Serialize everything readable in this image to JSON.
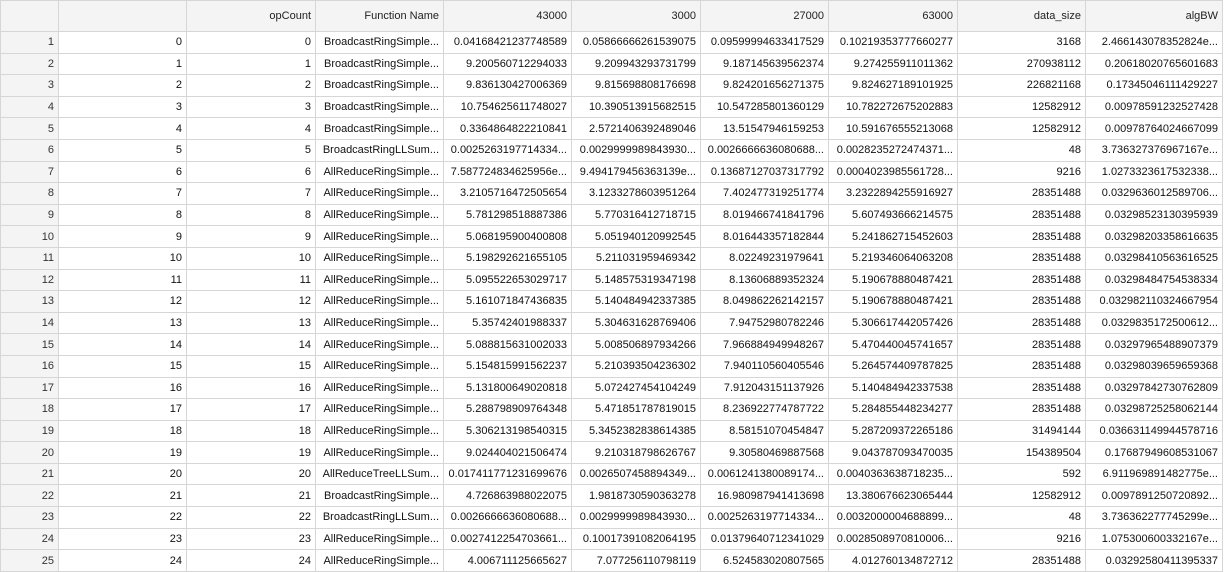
{
  "headers": [
    "",
    "",
    "opCount",
    "Function Name",
    "43000",
    "3000",
    "27000",
    "63000",
    "data_size",
    "algBW"
  ],
  "rows": [
    [
      "1",
      "0",
      "0",
      "BroadcastRingSimple...",
      "0.04168421237748589",
      "0.05866666261539075",
      "0.09599994633417529",
      "0.10219353777660277",
      "3168",
      "2.466143078352824e..."
    ],
    [
      "2",
      "1",
      "1",
      "BroadcastRingSimple...",
      "9.200560712294033",
      "9.209943293731799",
      "9.187145639562374",
      "9.274255911011362",
      "270938112",
      "0.20618020765601683"
    ],
    [
      "3",
      "2",
      "2",
      "BroadcastRingSimple...",
      "9.836130427006369",
      "9.815698808176698",
      "9.824201656271375",
      "9.824627189101925",
      "226821168",
      "0.17345046111429227"
    ],
    [
      "4",
      "3",
      "3",
      "BroadcastRingSimple...",
      "10.754625611748027",
      "10.390513915682515",
      "10.547285801360129",
      "10.782272675202883",
      "12582912",
      "0.00978591232527428"
    ],
    [
      "5",
      "4",
      "4",
      "BroadcastRingSimple...",
      "0.3364864822210841",
      "2.5721406392489046",
      "13.51547946159253",
      "10.591676555213068",
      "12582912",
      "0.00978764024667099"
    ],
    [
      "6",
      "5",
      "5",
      "BroadcastRingLLSum...",
      "0.0025263197714334...",
      "0.0029999989843930...",
      "0.0026666636080688...",
      "0.0028235272474371...",
      "48",
      "3.736327376967167e..."
    ],
    [
      "7",
      "6",
      "6",
      "AllReduceRingSimple...",
      "7.587724834625956e...",
      "9.494179456363139e...",
      "0.13687127037317792",
      "0.0004023985561728...",
      "9216",
      "1.0273323617532338..."
    ],
    [
      "8",
      "7",
      "7",
      "AllReduceRingSimple...",
      "3.2105716472505654",
      "3.1233278603951264",
      "7.402477319251774",
      "3.2322894255916927",
      "28351488",
      "0.0329636012589706..."
    ],
    [
      "9",
      "8",
      "8",
      "AllReduceRingSimple...",
      "5.781298518887386",
      "5.770316412718715",
      "8.019466741841796",
      "5.607493666214575",
      "28351488",
      "0.03298523130395939"
    ],
    [
      "10",
      "9",
      "9",
      "AllReduceRingSimple...",
      "5.068195900400808",
      "5.051940120992545",
      "8.016443357182844",
      "5.241862715452603",
      "28351488",
      "0.03298203358616635"
    ],
    [
      "11",
      "10",
      "10",
      "AllReduceRingSimple...",
      "5.198292621655105",
      "5.211031959469342",
      "8.02249231979641",
      "5.219346064063208",
      "28351488",
      "0.03298410563616525"
    ],
    [
      "12",
      "11",
      "11",
      "AllReduceRingSimple...",
      "5.095522653029717",
      "5.148575319347198",
      "8.13606889352324",
      "5.190678880487421",
      "28351488",
      "0.03298484754538334"
    ],
    [
      "13",
      "12",
      "12",
      "AllReduceRingSimple...",
      "5.161071847436835",
      "5.140484942337385",
      "8.049862262142157",
      "5.190678880487421",
      "28351488",
      "0.032982110324667954"
    ],
    [
      "14",
      "13",
      "13",
      "AllReduceRingSimple...",
      "5.35742401988337",
      "5.304631628769406",
      "7.94752980782246",
      "5.306617442057426",
      "28351488",
      "0.0329835172500612..."
    ],
    [
      "15",
      "14",
      "14",
      "AllReduceRingSimple...",
      "5.088815631002033",
      "5.008506897934266",
      "7.966884949948267",
      "5.470440045741657",
      "28351488",
      "0.03297965488907379"
    ],
    [
      "16",
      "15",
      "15",
      "AllReduceRingSimple...",
      "5.154815991562237",
      "5.210393504236302",
      "7.940110560405546",
      "5.264574409787825",
      "28351488",
      "0.03298039659659368"
    ],
    [
      "17",
      "16",
      "16",
      "AllReduceRingSimple...",
      "5.131800649020818",
      "5.072427454104249",
      "7.912043151137926",
      "5.140484942337538",
      "28351488",
      "0.03297842730762809"
    ],
    [
      "18",
      "17",
      "17",
      "AllReduceRingSimple...",
      "5.288798909764348",
      "5.471851787819015",
      "8.236922774787722",
      "5.284855448234277",
      "28351488",
      "0.03298725258062144"
    ],
    [
      "19",
      "18",
      "18",
      "AllReduceRingSimple...",
      "5.306213198540315",
      "5.3452382838614385",
      "8.58151070454847",
      "5.287209372265186",
      "31494144",
      "0.036631149944578716"
    ],
    [
      "20",
      "19",
      "19",
      "AllReduceRingSimple...",
      "9.024404021506474",
      "9.210318798626767",
      "9.30580469887568",
      "9.043787093470035",
      "154389504",
      "0.17687949608531067"
    ],
    [
      "21",
      "20",
      "20",
      "AllReduceTreeLLSum...",
      "0.017411771231699676",
      "0.0026507458894349...",
      "0.0061241380089174...",
      "0.0040363638718235...",
      "592",
      "6.911969891482775e..."
    ],
    [
      "22",
      "21",
      "21",
      "BroadcastRingSimple...",
      "4.726863988022075",
      "1.9818730590363278",
      "16.980987941413698",
      "13.380676623065444",
      "12582912",
      "0.0097891250720892..."
    ],
    [
      "23",
      "22",
      "22",
      "BroadcastRingLLSum...",
      "0.0026666636080688...",
      "0.0029999989843930...",
      "0.0025263197714334...",
      "0.0032000004688899...",
      "48",
      "3.736362277745299e..."
    ],
    [
      "24",
      "23",
      "23",
      "AllReduceRingSimple...",
      "0.0027412254703661...",
      "0.10017391082064195",
      "0.01379640712341029",
      "0.0028508970810006...",
      "9216",
      "1.075300600332167e..."
    ],
    [
      "25",
      "24",
      "24",
      "AllReduceRingSimple...",
      "4.006711125665627",
      "7.077256110798119",
      "6.524583020807565",
      "4.012760134872712",
      "28351488",
      "0.03292580411395337"
    ]
  ]
}
